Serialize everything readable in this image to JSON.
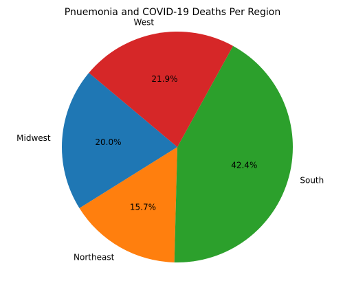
{
  "chart_data": {
    "type": "pie",
    "title": "Pnuemonia and COVID-19 Deaths Per Region",
    "slices": [
      {
        "label": "Midwest",
        "value": 20.0,
        "pct_label": "20.0%",
        "color": "#1f77b4"
      },
      {
        "label": "Northeast",
        "value": 15.7,
        "pct_label": "15.7%",
        "color": "#ff7f0e"
      },
      {
        "label": "South",
        "value": 42.4,
        "pct_label": "42.4%",
        "color": "#2ca02c"
      },
      {
        "label": "West",
        "value": 21.9,
        "pct_label": "21.9%",
        "color": "#d62728"
      }
    ],
    "start_angle_deg": 140,
    "direction": "counterclockwise"
  }
}
